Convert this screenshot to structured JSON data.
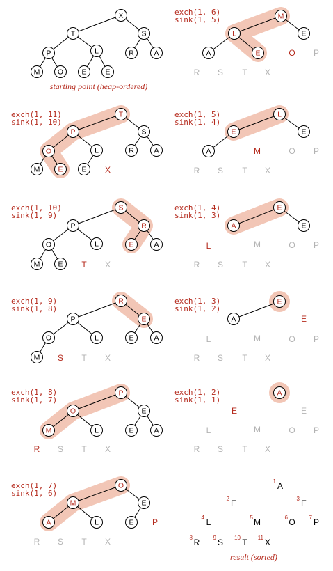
{
  "colors": {
    "accent": "#b52b1e",
    "highlight": "#f2c6b6",
    "gray": "#b3b3b3",
    "black": "#000000"
  },
  "captions": {
    "start": "starting point (heap-ordered)",
    "end": "result (sorted)"
  },
  "panels": [
    {
      "id": "p0",
      "ops": [],
      "edges": [
        [
          "X",
          "T"
        ],
        [
          "X",
          "S"
        ],
        [
          "T",
          "P"
        ],
        [
          "T",
          "L"
        ],
        [
          "S",
          "R"
        ],
        [
          "S",
          "A"
        ],
        [
          "P",
          "M"
        ],
        [
          "P",
          "O"
        ],
        [
          "L",
          "E1"
        ],
        [
          "L",
          "E2"
        ]
      ],
      "highlight": [],
      "nodes": [
        {
          "k": "X",
          "t": "X",
          "s": "n"
        },
        {
          "k": "T",
          "t": "T",
          "s": "n"
        },
        {
          "k": "S",
          "t": "S",
          "s": "n"
        },
        {
          "k": "P",
          "t": "P",
          "s": "n"
        },
        {
          "k": "L",
          "t": "L",
          "s": "n"
        },
        {
          "k": "R",
          "t": "R",
          "s": "n"
        },
        {
          "k": "A",
          "t": "A",
          "s": "n"
        },
        {
          "k": "M",
          "t": "M",
          "s": "n"
        },
        {
          "k": "O",
          "t": "O",
          "s": "n"
        },
        {
          "k": "E1",
          "t": "E",
          "s": "n"
        },
        {
          "k": "E2",
          "t": "E",
          "s": "n"
        }
      ],
      "free": [],
      "caption": "start"
    },
    {
      "id": "p1",
      "ops": [
        "exch(1, 6)",
        "sink(1, 5)"
      ],
      "edges": [
        [
          "M",
          "L"
        ],
        [
          "M",
          "E1"
        ],
        [
          "L",
          "A"
        ],
        [
          "L",
          "E2"
        ]
      ],
      "highlight": [
        "M",
        "L",
        "E2"
      ],
      "nodes": [
        {
          "k": "M",
          "t": "M",
          "s": "r"
        },
        {
          "k": "L",
          "t": "L",
          "s": "r"
        },
        {
          "k": "E1",
          "t": "E",
          "s": "n"
        },
        {
          "k": "A",
          "t": "A",
          "s": "n"
        },
        {
          "k": "E2",
          "t": "E",
          "s": "r"
        }
      ],
      "free": [
        {
          "k": "O",
          "t": "O",
          "s": "r"
        },
        {
          "k": "P",
          "t": "P",
          "s": "g"
        },
        {
          "k": "R",
          "t": "R",
          "s": "g"
        },
        {
          "k": "S",
          "t": "S",
          "s": "g"
        },
        {
          "k": "T",
          "t": "T",
          "s": "g"
        },
        {
          "k": "X",
          "t": "X",
          "s": "g"
        }
      ]
    },
    {
      "id": "p2",
      "ops": [
        "exch(1, 11)",
        "sink(1, 10)"
      ],
      "edges": [
        [
          "T",
          "P"
        ],
        [
          "T",
          "S"
        ],
        [
          "P",
          "O"
        ],
        [
          "P",
          "L"
        ],
        [
          "S",
          "R"
        ],
        [
          "S",
          "A"
        ],
        [
          "O",
          "M"
        ],
        [
          "O",
          "E1"
        ],
        [
          "L",
          "E2"
        ]
      ],
      "highlight": [
        "T",
        "P",
        "O",
        "E1"
      ],
      "nodes": [
        {
          "k": "T",
          "t": "T",
          "s": "r"
        },
        {
          "k": "P",
          "t": "P",
          "s": "r"
        },
        {
          "k": "S",
          "t": "S",
          "s": "n"
        },
        {
          "k": "O",
          "t": "O",
          "s": "r"
        },
        {
          "k": "L",
          "t": "L",
          "s": "n"
        },
        {
          "k": "R",
          "t": "R",
          "s": "n"
        },
        {
          "k": "A",
          "t": "A",
          "s": "n"
        },
        {
          "k": "M",
          "t": "M",
          "s": "n"
        },
        {
          "k": "E1",
          "t": "E",
          "s": "r"
        },
        {
          "k": "E2",
          "t": "E",
          "s": "n"
        }
      ],
      "free": [
        {
          "k": "X",
          "t": "X",
          "s": "r"
        }
      ]
    },
    {
      "id": "p3",
      "ops": [
        "exch(1, 5)",
        "sink(1, 4)"
      ],
      "edges": [
        [
          "L",
          "E1"
        ],
        [
          "L",
          "E2"
        ],
        [
          "E1",
          "A"
        ]
      ],
      "highlight": [
        "L",
        "E1"
      ],
      "nodes": [
        {
          "k": "L",
          "t": "L",
          "s": "r"
        },
        {
          "k": "E1",
          "t": "E",
          "s": "r"
        },
        {
          "k": "E2",
          "t": "E",
          "s": "n"
        },
        {
          "k": "A",
          "t": "A",
          "s": "n"
        }
      ],
      "free": [
        {
          "k": "M",
          "t": "M",
          "s": "r"
        },
        {
          "k": "O",
          "t": "O",
          "s": "g"
        },
        {
          "k": "P",
          "t": "P",
          "s": "g"
        },
        {
          "k": "R",
          "t": "R",
          "s": "g"
        },
        {
          "k": "S",
          "t": "S",
          "s": "g"
        },
        {
          "k": "T",
          "t": "T",
          "s": "g"
        },
        {
          "k": "X",
          "t": "X",
          "s": "g"
        }
      ]
    },
    {
      "id": "p4",
      "ops": [
        "exch(1, 10)",
        "sink(1, 9)"
      ],
      "edges": [
        [
          "S",
          "P"
        ],
        [
          "S",
          "R"
        ],
        [
          "P",
          "O"
        ],
        [
          "P",
          "L"
        ],
        [
          "R",
          "E2"
        ],
        [
          "R",
          "A"
        ],
        [
          "O",
          "M"
        ],
        [
          "O",
          "E1"
        ]
      ],
      "highlight": [
        "S",
        "R",
        "E2"
      ],
      "nodes": [
        {
          "k": "S",
          "t": "S",
          "s": "r"
        },
        {
          "k": "P",
          "t": "P",
          "s": "n"
        },
        {
          "k": "R",
          "t": "R",
          "s": "r"
        },
        {
          "k": "O",
          "t": "O",
          "s": "n"
        },
        {
          "k": "L",
          "t": "L",
          "s": "n"
        },
        {
          "k": "E2",
          "t": "E",
          "s": "r"
        },
        {
          "k": "A",
          "t": "A",
          "s": "n"
        },
        {
          "k": "M",
          "t": "M",
          "s": "n"
        },
        {
          "k": "E1",
          "t": "E",
          "s": "n"
        }
      ],
      "free": [
        {
          "k": "T",
          "t": "T",
          "s": "r"
        },
        {
          "k": "X",
          "t": "X",
          "s": "g"
        }
      ]
    },
    {
      "id": "p5",
      "ops": [
        "exch(1, 4)",
        "sink(1, 3)"
      ],
      "edges": [
        [
          "E1",
          "A"
        ],
        [
          "E1",
          "E2"
        ]
      ],
      "highlight": [
        "E1",
        "A"
      ],
      "nodes": [
        {
          "k": "E1",
          "t": "E",
          "s": "r"
        },
        {
          "k": "A",
          "t": "A",
          "s": "r"
        },
        {
          "k": "E2",
          "t": "E",
          "s": "n"
        }
      ],
      "free": [
        {
          "k": "L",
          "t": "L",
          "s": "r"
        },
        {
          "k": "M",
          "t": "M",
          "s": "g"
        },
        {
          "k": "O",
          "t": "O",
          "s": "g"
        },
        {
          "k": "P",
          "t": "P",
          "s": "g"
        },
        {
          "k": "R",
          "t": "R",
          "s": "g"
        },
        {
          "k": "S",
          "t": "S",
          "s": "g"
        },
        {
          "k": "T",
          "t": "T",
          "s": "g"
        },
        {
          "k": "X",
          "t": "X",
          "s": "g"
        }
      ]
    },
    {
      "id": "p6",
      "ops": [
        "exch(1, 9)",
        "sink(1, 8)"
      ],
      "edges": [
        [
          "R",
          "P"
        ],
        [
          "R",
          "E2"
        ],
        [
          "P",
          "O"
        ],
        [
          "P",
          "L"
        ],
        [
          "E2",
          "E1"
        ],
        [
          "E2",
          "A"
        ],
        [
          "O",
          "M"
        ]
      ],
      "highlight": [
        "R",
        "E2"
      ],
      "nodes": [
        {
          "k": "R",
          "t": "R",
          "s": "r"
        },
        {
          "k": "P",
          "t": "P",
          "s": "n"
        },
        {
          "k": "E2",
          "t": "E",
          "s": "r"
        },
        {
          "k": "O",
          "t": "O",
          "s": "n"
        },
        {
          "k": "L",
          "t": "L",
          "s": "n"
        },
        {
          "k": "E1",
          "t": "E",
          "s": "n"
        },
        {
          "k": "A",
          "t": "A",
          "s": "n"
        },
        {
          "k": "M",
          "t": "M",
          "s": "n"
        }
      ],
      "free": [
        {
          "k": "S",
          "t": "S",
          "s": "r"
        },
        {
          "k": "T",
          "t": "T",
          "s": "g"
        },
        {
          "k": "X",
          "t": "X",
          "s": "g"
        }
      ]
    },
    {
      "id": "p7",
      "ops": [
        "exch(1, 3)",
        "sink(1, 2)"
      ],
      "edges": [
        [
          "E1",
          "A"
        ]
      ],
      "highlight": [
        "E1"
      ],
      "nodes": [
        {
          "k": "E1",
          "t": "E",
          "s": "r"
        },
        {
          "k": "A",
          "t": "A",
          "s": "n"
        }
      ],
      "free": [
        {
          "k": "E2",
          "t": "E",
          "s": "r"
        },
        {
          "k": "L",
          "t": "L",
          "s": "g"
        },
        {
          "k": "M",
          "t": "M",
          "s": "g"
        },
        {
          "k": "O",
          "t": "O",
          "s": "g"
        },
        {
          "k": "P",
          "t": "P",
          "s": "g"
        },
        {
          "k": "R",
          "t": "R",
          "s": "g"
        },
        {
          "k": "S",
          "t": "S",
          "s": "g"
        },
        {
          "k": "T",
          "t": "T",
          "s": "g"
        },
        {
          "k": "X",
          "t": "X",
          "s": "g"
        }
      ]
    },
    {
      "id": "p8",
      "ops": [
        "exch(1, 8)",
        "sink(1, 7)"
      ],
      "edges": [
        [
          "P",
          "O"
        ],
        [
          "P",
          "E2"
        ],
        [
          "O",
          "M"
        ],
        [
          "O",
          "L"
        ],
        [
          "E2",
          "E1"
        ],
        [
          "E2",
          "A"
        ]
      ],
      "highlight": [
        "P",
        "O",
        "M"
      ],
      "nodes": [
        {
          "k": "P",
          "t": "P",
          "s": "r"
        },
        {
          "k": "O",
          "t": "O",
          "s": "r"
        },
        {
          "k": "E2",
          "t": "E",
          "s": "n"
        },
        {
          "k": "M",
          "t": "M",
          "s": "r"
        },
        {
          "k": "L",
          "t": "L",
          "s": "n"
        },
        {
          "k": "E1",
          "t": "E",
          "s": "n"
        },
        {
          "k": "A",
          "t": "A",
          "s": "n"
        }
      ],
      "free": [
        {
          "k": "R",
          "t": "R",
          "s": "r"
        },
        {
          "k": "S",
          "t": "S",
          "s": "g"
        },
        {
          "k": "T",
          "t": "T",
          "s": "g"
        },
        {
          "k": "X",
          "t": "X",
          "s": "g"
        }
      ]
    },
    {
      "id": "p9",
      "ops": [
        "exch(1, 2)",
        "sink(1, 1)"
      ],
      "edges": [],
      "highlight": [
        "A"
      ],
      "nodes": [
        {
          "k": "A",
          "t": "A",
          "s": "r"
        }
      ],
      "free": [
        {
          "k": "E1",
          "t": "E",
          "s": "r"
        },
        {
          "k": "E2",
          "t": "E",
          "s": "g"
        },
        {
          "k": "L",
          "t": "L",
          "s": "g"
        },
        {
          "k": "M",
          "t": "M",
          "s": "g"
        },
        {
          "k": "O",
          "t": "O",
          "s": "g"
        },
        {
          "k": "P",
          "t": "P",
          "s": "g"
        },
        {
          "k": "R",
          "t": "R",
          "s": "g"
        },
        {
          "k": "S",
          "t": "S",
          "s": "g"
        },
        {
          "k": "T",
          "t": "T",
          "s": "g"
        },
        {
          "k": "X",
          "t": "X",
          "s": "g"
        }
      ]
    },
    {
      "id": "p10",
      "ops": [
        "exch(1, 7)",
        "sink(1, 6)"
      ],
      "edges": [
        [
          "O",
          "M"
        ],
        [
          "O",
          "E2"
        ],
        [
          "M",
          "A"
        ],
        [
          "M",
          "L"
        ],
        [
          "E2",
          "E1"
        ]
      ],
      "highlight": [
        "O",
        "M",
        "A"
      ],
      "nodes": [
        {
          "k": "O",
          "t": "O",
          "s": "r"
        },
        {
          "k": "M",
          "t": "M",
          "s": "r"
        },
        {
          "k": "E2",
          "t": "E",
          "s": "n"
        },
        {
          "k": "A",
          "t": "A",
          "s": "r"
        },
        {
          "k": "L",
          "t": "L",
          "s": "n"
        },
        {
          "k": "E1",
          "t": "E",
          "s": "n"
        }
      ],
      "free": [
        {
          "k": "P",
          "t": "P",
          "s": "r"
        },
        {
          "k": "R",
          "t": "R",
          "s": "g"
        },
        {
          "k": "S",
          "t": "S",
          "s": "g"
        },
        {
          "k": "T",
          "t": "T",
          "s": "g"
        },
        {
          "k": "X",
          "t": "X",
          "s": "g"
        }
      ]
    },
    {
      "id": "p11",
      "ops": [],
      "edges": [],
      "highlight": [],
      "nodes": [],
      "free": [
        {
          "k": "A",
          "t": "A",
          "s": "k",
          "i": "1"
        },
        {
          "k": "E1",
          "t": "E",
          "s": "k",
          "i": "2"
        },
        {
          "k": "E2",
          "t": "E",
          "s": "k",
          "i": "3"
        },
        {
          "k": "L",
          "t": "L",
          "s": "k",
          "i": "4"
        },
        {
          "k": "M",
          "t": "M",
          "s": "k",
          "i": "5"
        },
        {
          "k": "O",
          "t": "O",
          "s": "k",
          "i": "6"
        },
        {
          "k": "P",
          "t": "P",
          "s": "k",
          "i": "7"
        },
        {
          "k": "R",
          "t": "R",
          "s": "k",
          "i": "8"
        },
        {
          "k": "S",
          "t": "S",
          "s": "k",
          "i": "9"
        },
        {
          "k": "T",
          "t": "T",
          "s": "k",
          "i": "10"
        },
        {
          "k": "X",
          "t": "X",
          "s": "k",
          "i": "11"
        }
      ],
      "caption": "end"
    }
  ]
}
